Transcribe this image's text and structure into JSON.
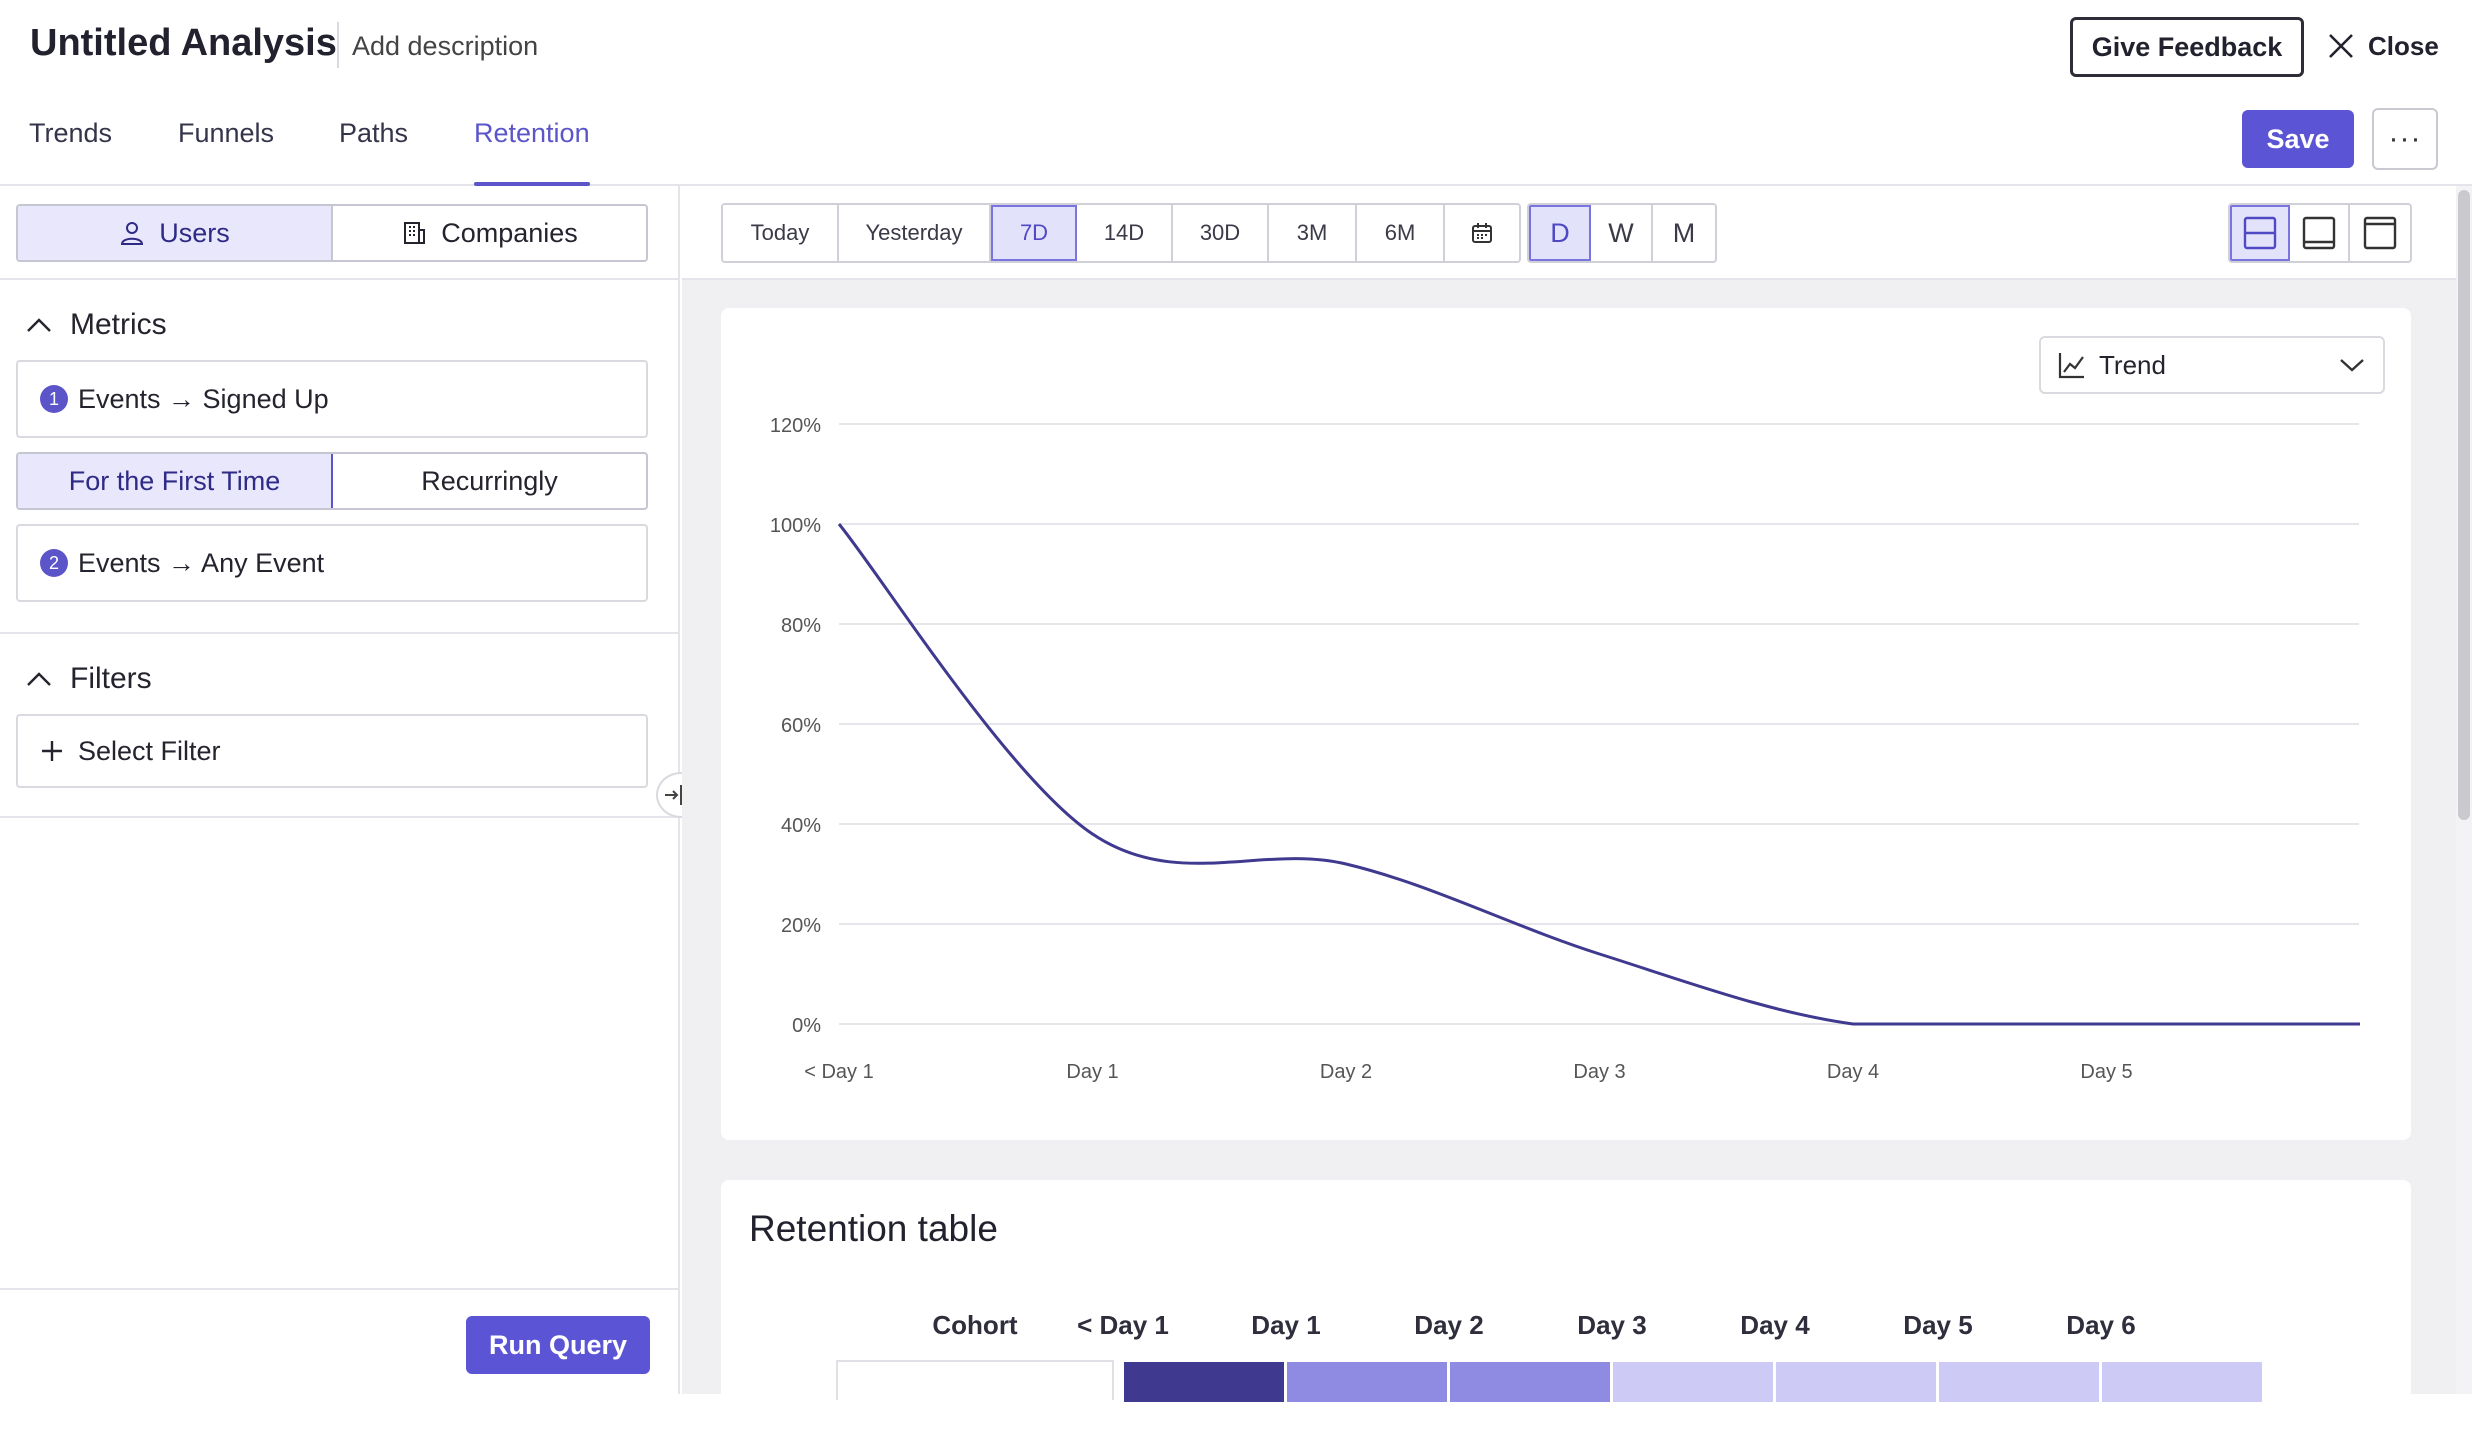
{
  "header": {
    "title": "Untitled Analysis",
    "description_placeholder": "Add description",
    "feedback_label": "Give Feedback",
    "close_label": "Close",
    "save_label": "Save",
    "more_label": "···"
  },
  "tabs": [
    {
      "label": "Trends"
    },
    {
      "label": "Funnels"
    },
    {
      "label": "Paths"
    },
    {
      "label": "Retention",
      "active": true
    }
  ],
  "entity_toggle": [
    {
      "label": "Users",
      "icon": "user-icon",
      "selected": true
    },
    {
      "label": "Companies",
      "icon": "building-icon",
      "selected": false
    }
  ],
  "metrics": {
    "heading": "Metrics",
    "items": [
      {
        "number": "1",
        "label": "Events → Signed Up"
      },
      {
        "number": "2",
        "label": "Events → Any Event"
      }
    ],
    "frequency": [
      {
        "label": "For the First Time",
        "selected": true
      },
      {
        "label": "Recurringly",
        "selected": false
      }
    ]
  },
  "filters": {
    "heading": "Filters",
    "select_label": "Select Filter"
  },
  "run_query_label": "Run Query",
  "date_ranges": [
    {
      "label": "Today"
    },
    {
      "label": "Yesterday"
    },
    {
      "label": "7D",
      "selected": true
    },
    {
      "label": "14D"
    },
    {
      "label": "30D"
    },
    {
      "label": "3M"
    },
    {
      "label": "6M"
    }
  ],
  "granularity": [
    {
      "label": "D",
      "selected": true
    },
    {
      "label": "W"
    },
    {
      "label": "M"
    }
  ],
  "view_select": {
    "label": "Trend"
  },
  "chart_data": {
    "type": "line",
    "x": [
      "< Day 1",
      "Day 1",
      "Day 2",
      "Day 3",
      "Day 4",
      "Day 5",
      "Day 6"
    ],
    "series": [
      {
        "values": [
          100,
          38,
          32,
          14,
          0,
          0,
          0
        ],
        "color": "#3f3a8f"
      }
    ],
    "x_tick_labels": [
      "< Day 1",
      "Day 1",
      "Day 2",
      "Day 3",
      "Day 4",
      "Day 5"
    ],
    "y_tick_labels": [
      "0%",
      "20%",
      "40%",
      "60%",
      "80%",
      "100%",
      "120%"
    ],
    "ylim": [
      0,
      120
    ],
    "grid": true
  },
  "retention_table": {
    "title": "Retention table",
    "headers": [
      "Cohort",
      "< Day 1",
      "Day 1",
      "Day 2",
      "Day 3",
      "Day 4",
      "Day 5",
      "Day 6"
    ],
    "cell_colors": [
      "#3f3a8f",
      "#8f8be3",
      "#8f8be3",
      "#cdcbf5",
      "#cdcbf5",
      "#cdcbf5",
      "#cdcbf5"
    ]
  },
  "colors": {
    "accent": "#5b55d6",
    "selected_bg": "#e8e7fb",
    "line": "#3f3a8f"
  }
}
